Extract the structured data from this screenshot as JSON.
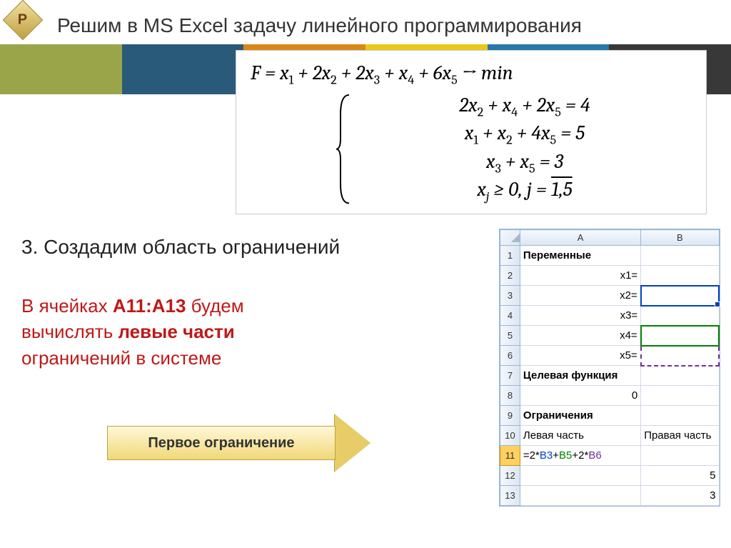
{
  "logo_letter": "P",
  "title": "Решим в MS Excel задачу линейного программирования",
  "banner_colors": [
    "#9aa54a",
    "#2a5a7a",
    "#d88818",
    "#e8c818",
    "#2878a8",
    "#383838"
  ],
  "formula": {
    "objective": "F = x₁ + 2x₂ + 2x₃ + x₄ + 6x₅ → min",
    "constraints": [
      "2x₂ + x₄ + 2x₅ = 4",
      "x₁ + x₂ + 4x₅ = 5",
      "x₃ + x₅ = 3",
      "xⱼ ≥ 0, j = 1,5"
    ]
  },
  "section_number": "3.",
  "section_title": "Создадим область ограничений",
  "body_pre": "В ячейках ",
  "body_range": "A11:A13",
  "body_mid": " будем вычислять ",
  "body_bold": "левые части",
  "body_post": " ограничений в системе",
  "arrow_label": "Первое ограничение",
  "excel": {
    "columns": [
      "A",
      "B"
    ],
    "rows": [
      {
        "n": "1",
        "a": "Переменные",
        "b": "",
        "a_class": "bold"
      },
      {
        "n": "2",
        "a": "x1=",
        "b": "",
        "a_class": "right"
      },
      {
        "n": "3",
        "a": "x2=",
        "b": "",
        "a_class": "right",
        "b_sel": "sel-blue sel-handle"
      },
      {
        "n": "4",
        "a": "x3=",
        "b": "",
        "a_class": "right"
      },
      {
        "n": "5",
        "a": "x4=",
        "b": "",
        "a_class": "right",
        "b_sel": "sel-green"
      },
      {
        "n": "6",
        "a": "x5=",
        "b": "",
        "a_class": "right",
        "b_sel": "sel-purple"
      },
      {
        "n": "7",
        "a": "Целевая функция",
        "b": "",
        "a_class": "bold"
      },
      {
        "n": "8",
        "a": "0",
        "b": "",
        "a_class": "right"
      },
      {
        "n": "9",
        "a": "Ограничения",
        "b": "",
        "a_class": "bold"
      },
      {
        "n": "10",
        "a": "Левая часть",
        "b": "Правая часть"
      },
      {
        "n": "11",
        "a_formula": true,
        "b": "",
        "active": true
      },
      {
        "n": "12",
        "a": "",
        "b": "5",
        "b_class": "right"
      },
      {
        "n": "13",
        "a": "",
        "b": "3",
        "b_class": "right"
      }
    ],
    "formula_parts": [
      "=2*",
      "B3",
      "+",
      "B5",
      "+2*",
      "B6"
    ],
    "formula_colors": [
      "",
      "f-blue",
      "",
      "f-green",
      "",
      "f-purple"
    ]
  }
}
